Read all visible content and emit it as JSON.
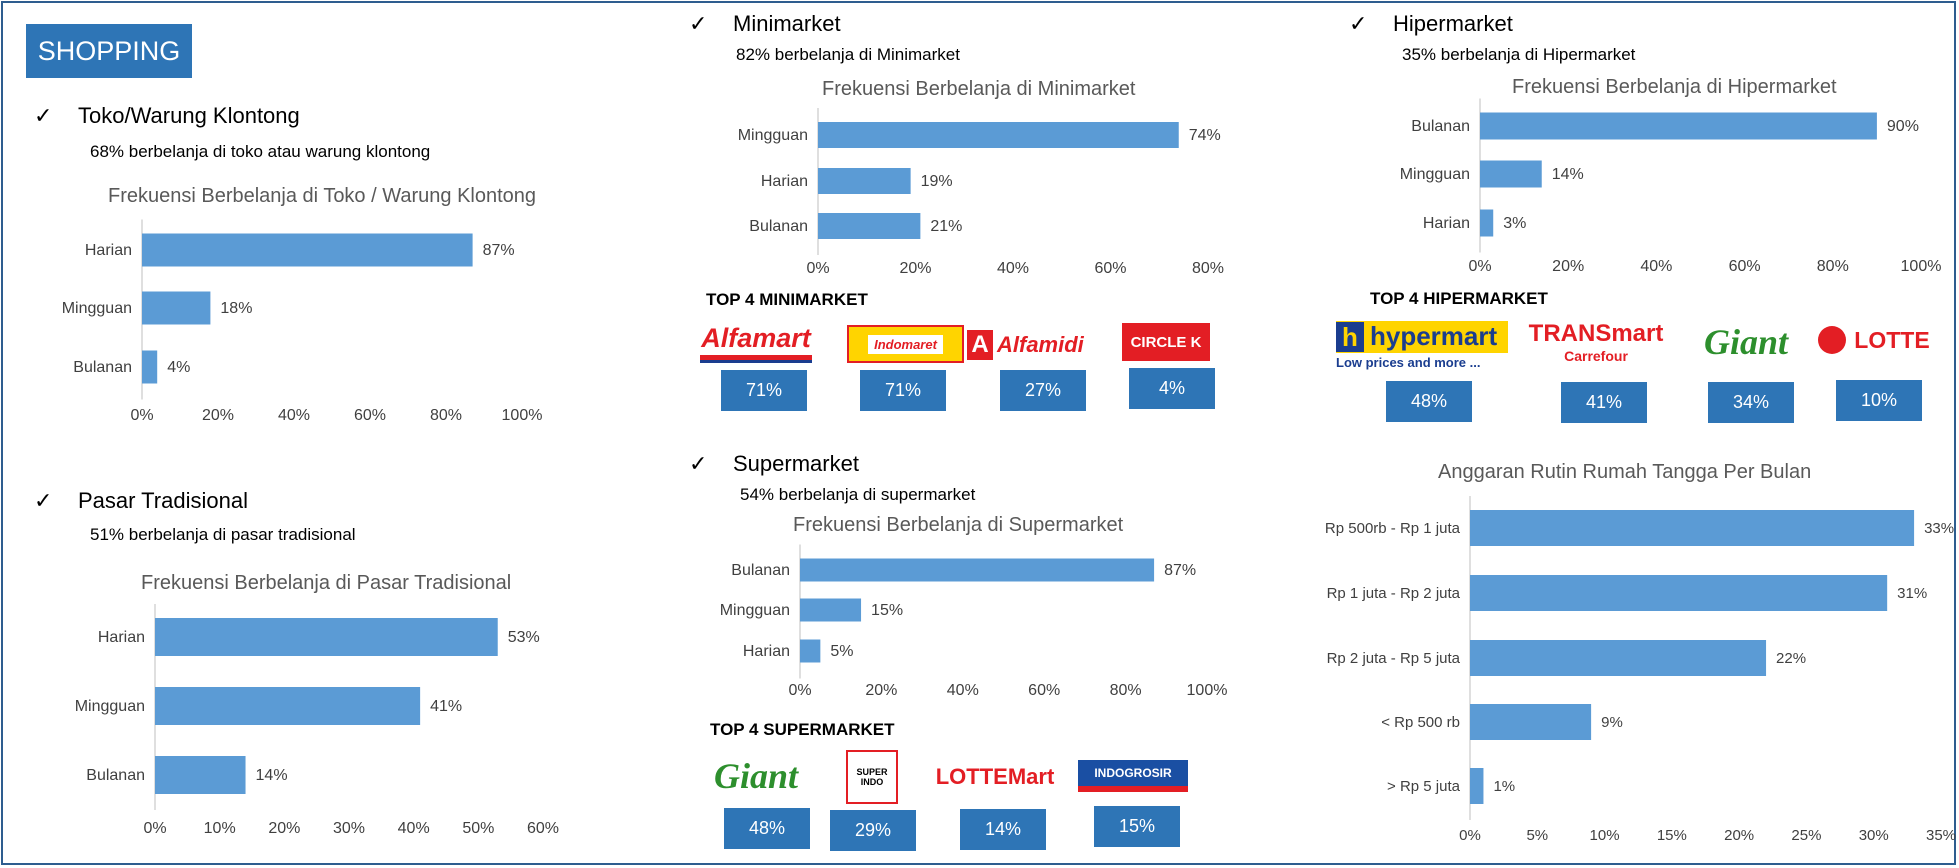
{
  "badge": "SHOPPING",
  "check": "✓",
  "sections": {
    "toko": {
      "title": "Toko/Warung Klontong",
      "sub": "68% berbelanja di toko atau warung klontong"
    },
    "pasar": {
      "title": "Pasar Tradisional",
      "sub": "51% berbelanja di pasar tradisional"
    },
    "mini": {
      "title": "Minimarket",
      "sub": "82% berbelanja di Minimarket",
      "top_title": "TOP 4 MINIMARKET"
    },
    "super": {
      "title": "Supermarket",
      "sub": "54% berbelanja di supermarket",
      "top_title": "TOP 4 SUPERMARKET"
    },
    "hiper": {
      "title": "Hipermarket",
      "sub": "35% berbelanja di Hipermarket",
      "top_title": "TOP 4 HIPERMARKET"
    }
  },
  "chart_data": [
    {
      "id": "toko",
      "type": "bar",
      "orientation": "horizontal",
      "title": "Frekuensi Berbelanja di Toko / Warung Klontong",
      "categories": [
        "Harian",
        "Mingguan",
        "Bulanan"
      ],
      "values": [
        87,
        18,
        4
      ],
      "data_labels": [
        "87%",
        "18%",
        "4%"
      ],
      "xlim": [
        0,
        100
      ],
      "ticks": [
        "0%",
        "20%",
        "40%",
        "60%",
        "80%",
        "100%"
      ],
      "bar_color": "#5b9bd5"
    },
    {
      "id": "pasar",
      "type": "bar",
      "orientation": "horizontal",
      "title": "Frekuensi Berbelanja di Pasar Tradisional",
      "categories": [
        "Harian",
        "Mingguan",
        "Bulanan"
      ],
      "values": [
        53,
        41,
        14
      ],
      "data_labels": [
        "53%",
        "41%",
        "14%"
      ],
      "xlim": [
        0,
        60
      ],
      "ticks": [
        "0%",
        "10%",
        "20%",
        "30%",
        "40%",
        "50%",
        "60%"
      ],
      "bar_color": "#5b9bd5"
    },
    {
      "id": "mini",
      "type": "bar",
      "orientation": "horizontal",
      "title": "Frekuensi Berbelanja di Minimarket",
      "categories": [
        "Mingguan",
        "Harian",
        "Bulanan"
      ],
      "values": [
        74,
        19,
        21
      ],
      "data_labels": [
        "74%",
        "19%",
        "21%"
      ],
      "xlim": [
        0,
        80
      ],
      "ticks": [
        "0%",
        "20%",
        "40%",
        "60%",
        "80%"
      ],
      "bar_color": "#5b9bd5"
    },
    {
      "id": "super",
      "type": "bar",
      "orientation": "horizontal",
      "title": "Frekuensi Berbelanja di Supermarket",
      "categories": [
        "Bulanan",
        "Mingguan",
        "Harian"
      ],
      "values": [
        87,
        15,
        5
      ],
      "data_labels": [
        "87%",
        "15%",
        "5%"
      ],
      "xlim": [
        0,
        100
      ],
      "ticks": [
        "0%",
        "20%",
        "40%",
        "60%",
        "80%",
        "100%"
      ],
      "bar_color": "#5b9bd5"
    },
    {
      "id": "hiper",
      "type": "bar",
      "orientation": "horizontal",
      "title": "Frekuensi Berbelanja di Hipermarket",
      "categories": [
        "Bulanan",
        "Mingguan",
        "Harian"
      ],
      "values": [
        90,
        14,
        3
      ],
      "data_labels": [
        "90%",
        "14%",
        "3%"
      ],
      "xlim": [
        0,
        100
      ],
      "ticks": [
        "0%",
        "20%",
        "40%",
        "60%",
        "80%",
        "100%"
      ],
      "bar_color": "#5b9bd5"
    },
    {
      "id": "anggaran",
      "type": "bar",
      "orientation": "horizontal",
      "title": "Anggaran Rutin Rumah Tangga Per Bulan",
      "categories": [
        "Rp 500rb - Rp 1 juta",
        "Rp 1 juta - Rp 2 juta",
        "Rp 2 juta - Rp 5 juta",
        "< Rp 500 rb",
        "> Rp 5 juta"
      ],
      "values": [
        33,
        31,
        22,
        9,
        1
      ],
      "data_labels": [
        "33%",
        "31%",
        "22%",
        "9%",
        "1%"
      ],
      "xlim": [
        0,
        35
      ],
      "ticks": [
        "0%",
        "5%",
        "10%",
        "15%",
        "20%",
        "25%",
        "30%",
        "35%"
      ],
      "bar_color": "#5b9bd5"
    }
  ],
  "top_mini": [
    {
      "name": "Alfamart",
      "pct": "71%"
    },
    {
      "name": "Indomaret",
      "pct": "71%"
    },
    {
      "name": "Alfamidi",
      "pct": "27%"
    },
    {
      "name": "CIRCLE K",
      "pct": "4%"
    }
  ],
  "top_super": [
    {
      "name": "Giant",
      "pct": "48%"
    },
    {
      "name": "SUPER INDO",
      "pct": "29%"
    },
    {
      "name": "LOTTEMart",
      "pct": "14%"
    },
    {
      "name": "INDOGROSIR",
      "pct": "15%"
    }
  ],
  "top_hiper": [
    {
      "name": "hypermart",
      "tagline": "Low prices and more ...",
      "pct": "48%"
    },
    {
      "name": "TRANSmart",
      "tagline": "Carrefour",
      "pct": "41%"
    },
    {
      "name": "Giant",
      "pct": "34%"
    },
    {
      "name": "LOTTE",
      "pct": "10%"
    }
  ],
  "colors": {
    "accent": "#2e75b6",
    "bar": "#5b9bd5",
    "frame": "#2e5d8f"
  }
}
